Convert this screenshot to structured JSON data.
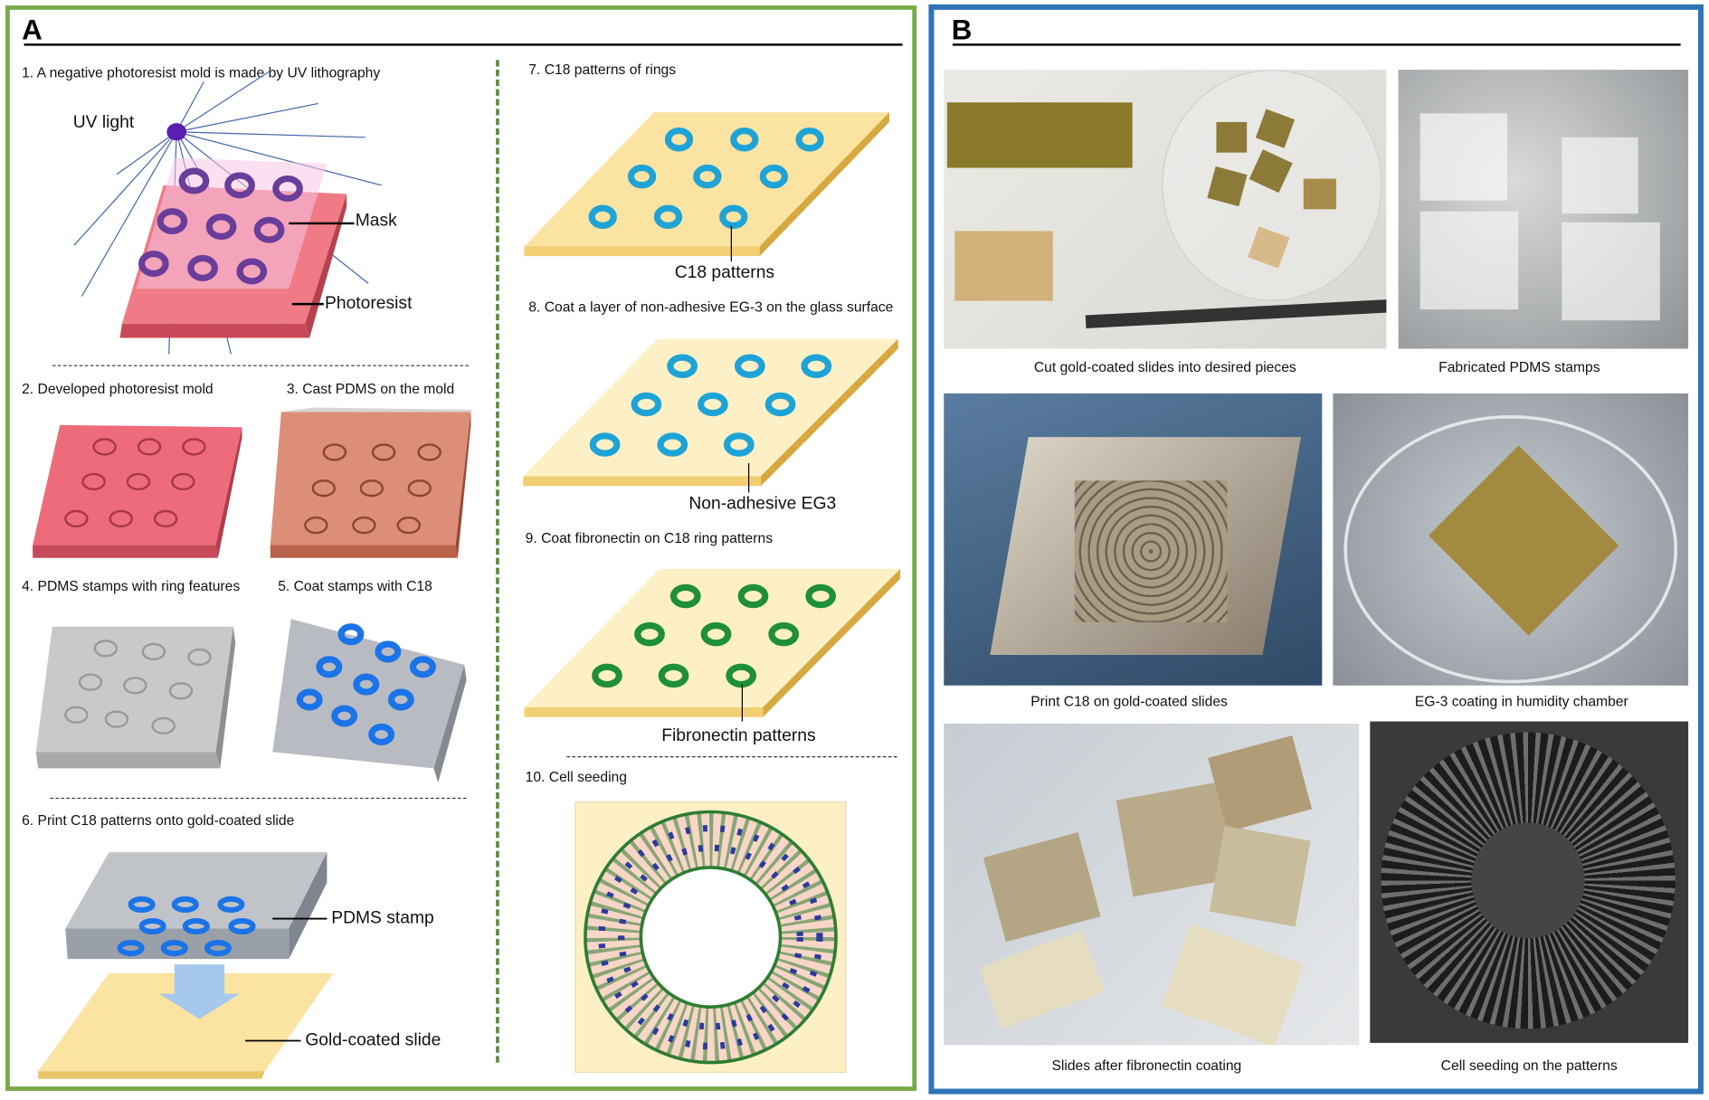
{
  "panel_a": {
    "letter": "A",
    "steps": [
      "1. A negative photoresist mold is made by UV lithography",
      "2. Developed photoresist mold",
      "3. Cast PDMS on the mold",
      "4. PDMS stamps with ring features",
      "5. Coat stamps with C18",
      "6. Print C18 patterns onto gold-coated slide",
      "7. C18 patterns of rings",
      "8. Coat a layer of non-adhesive EG-3 on the glass surface",
      "9. Coat fibronectin on C18 ring patterns",
      "10. Cell seeding"
    ],
    "labels": {
      "uv_light": "UV light",
      "mask": "Mask",
      "photoresist": "Photoresist",
      "pdms_stamp": "PDMS stamp",
      "gold_slide": "Gold-coated slide",
      "c18_patterns": "C18 patterns",
      "non_adhesive": "Non-adhesive EG3",
      "fibronectin": "Fibronectin patterns"
    }
  },
  "panel_b": {
    "letter": "B",
    "captions": [
      "Cut gold-coated slides into desired pieces",
      "Fabricated PDMS stamps",
      "Print C18 on gold-coated slides",
      "EG-3 coating in humidity chamber",
      "Slides after fibronectin coating",
      "Cell seeding on the patterns"
    ]
  },
  "colors": {
    "panel_a_border": "#77ab49",
    "panel_b_border": "#2e74b5",
    "photoresist": "#f07a86",
    "mask_rings": "#6a3d9a",
    "c18_ring": "#1ea3d6",
    "stamp_c18": "#1a73e8",
    "fibronectin": "#1f8f3a",
    "gold_slide": "#fbe3a2"
  }
}
